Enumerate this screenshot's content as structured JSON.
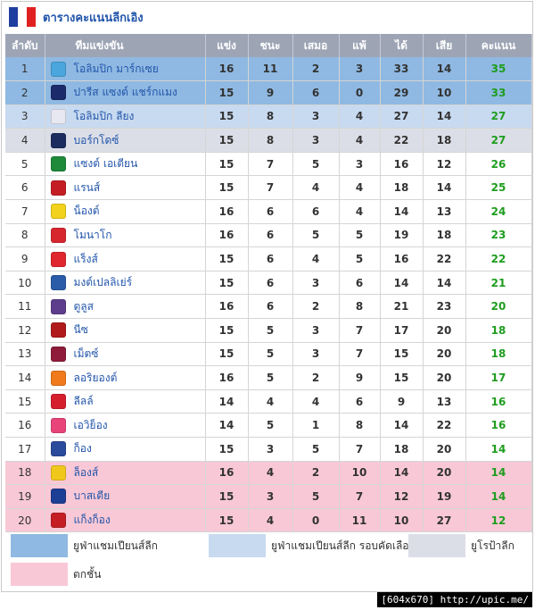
{
  "header": {
    "title": "ตารางคะแนนลีกเอิง",
    "flag_colors": [
      "#1f3fa0",
      "#ffffff",
      "#e02020"
    ]
  },
  "columns": {
    "pos": "ลำดับ",
    "team": "ทีมแข่งขัน",
    "played": "แข่ง",
    "won": "ชนะ",
    "drawn": "เสมอ",
    "lost": "แพ้",
    "gf": "ได้",
    "ga": "เสีย",
    "pts": "คะแนน"
  },
  "colors": {
    "champion": "#8fb9e2",
    "champion_qual": "#c8daf0",
    "europa": "#dcdee7",
    "relegation": "#f9c8d6",
    "normal": "#ffffff",
    "points_text": "#1e9d1e",
    "team_text": "#2255aa"
  },
  "rows": [
    {
      "pos": "1",
      "team": "โอลิมปิก มาร์กเซย",
      "crest": "om-crest-icon",
      "crest_color": "#4aa6dc",
      "played": "16",
      "won": "11",
      "drawn": "2",
      "lost": "3",
      "gf": "33",
      "ga": "14",
      "pts": "35",
      "zone": "champion"
    },
    {
      "pos": "2",
      "team": "ปารีส แซงต์ แชร์กแมง",
      "crest": "psg-crest-icon",
      "crest_color": "#1b2a6b",
      "played": "15",
      "won": "9",
      "drawn": "6",
      "lost": "0",
      "gf": "29",
      "ga": "10",
      "pts": "33",
      "zone": "champion"
    },
    {
      "pos": "3",
      "team": "โอลิมปิก ลียง",
      "crest": "lyon-crest-icon",
      "crest_color": "#e8e8f2",
      "played": "15",
      "won": "8",
      "drawn": "3",
      "lost": "4",
      "gf": "27",
      "ga": "14",
      "pts": "27",
      "zone": "champion_qual"
    },
    {
      "pos": "4",
      "team": "บอร์กโดซ์",
      "crest": "bordeaux-crest-icon",
      "crest_color": "#1c2c5e",
      "played": "15",
      "won": "8",
      "drawn": "3",
      "lost": "4",
      "gf": "22",
      "ga": "18",
      "pts": "27",
      "zone": "europa"
    },
    {
      "pos": "5",
      "team": "แซงต์ เอเตียน",
      "crest": "saint-etienne-crest-icon",
      "crest_color": "#1e8a3a",
      "played": "15",
      "won": "7",
      "drawn": "5",
      "lost": "3",
      "gf": "16",
      "ga": "12",
      "pts": "26",
      "zone": "normal"
    },
    {
      "pos": "6",
      "team": "แรนส์",
      "crest": "rennes-crest-icon",
      "crest_color": "#c41e24",
      "played": "15",
      "won": "7",
      "drawn": "4",
      "lost": "4",
      "gf": "18",
      "ga": "14",
      "pts": "25",
      "zone": "normal"
    },
    {
      "pos": "7",
      "team": "น็องต์",
      "crest": "nantes-crest-icon",
      "crest_color": "#f2d21c",
      "played": "16",
      "won": "6",
      "drawn": "6",
      "lost": "4",
      "gf": "14",
      "ga": "13",
      "pts": "24",
      "zone": "normal"
    },
    {
      "pos": "8",
      "team": "โมนาโก",
      "crest": "monaco-crest-icon",
      "crest_color": "#d8262e",
      "played": "16",
      "won": "6",
      "drawn": "5",
      "lost": "5",
      "gf": "19",
      "ga": "18",
      "pts": "23",
      "zone": "normal"
    },
    {
      "pos": "9",
      "team": "แร็งส์",
      "crest": "reims-crest-icon",
      "crest_color": "#e0262e",
      "played": "15",
      "won": "6",
      "drawn": "4",
      "lost": "5",
      "gf": "16",
      "ga": "22",
      "pts": "22",
      "zone": "normal"
    },
    {
      "pos": "10",
      "team": "มงต์เปลลิเย่ร์",
      "crest": "montpellier-crest-icon",
      "crest_color": "#2a5ca8",
      "played": "15",
      "won": "6",
      "drawn": "3",
      "lost": "6",
      "gf": "14",
      "ga": "14",
      "pts": "21",
      "zone": "normal"
    },
    {
      "pos": "11",
      "team": "ตูลูส",
      "crest": "toulouse-crest-icon",
      "crest_color": "#5d3e8c",
      "played": "16",
      "won": "6",
      "drawn": "2",
      "lost": "8",
      "gf": "21",
      "ga": "23",
      "pts": "20",
      "zone": "normal"
    },
    {
      "pos": "12",
      "team": "นีซ",
      "crest": "nice-crest-icon",
      "crest_color": "#b11a1a",
      "played": "15",
      "won": "5",
      "drawn": "3",
      "lost": "7",
      "gf": "17",
      "ga": "20",
      "pts": "18",
      "zone": "normal"
    },
    {
      "pos": "13",
      "team": "เม็ตซ์",
      "crest": "metz-crest-icon",
      "crest_color": "#8e1c3a",
      "played": "15",
      "won": "5",
      "drawn": "3",
      "lost": "7",
      "gf": "15",
      "ga": "20",
      "pts": "18",
      "zone": "normal"
    },
    {
      "pos": "14",
      "team": "ลอริยองต์",
      "crest": "lorient-crest-icon",
      "crest_color": "#f07a1c",
      "played": "16",
      "won": "5",
      "drawn": "2",
      "lost": "9",
      "gf": "15",
      "ga": "20",
      "pts": "17",
      "zone": "normal"
    },
    {
      "pos": "15",
      "team": "ลีลล์",
      "crest": "lille-crest-icon",
      "crest_color": "#d61f2c",
      "played": "14",
      "won": "4",
      "drawn": "4",
      "lost": "6",
      "gf": "9",
      "ga": "13",
      "pts": "16",
      "zone": "normal"
    },
    {
      "pos": "16",
      "team": "เอวิย็อง",
      "crest": "evian-crest-icon",
      "crest_color": "#e8447a",
      "played": "14",
      "won": "5",
      "drawn": "1",
      "lost": "8",
      "gf": "14",
      "ga": "22",
      "pts": "16",
      "zone": "normal"
    },
    {
      "pos": "17",
      "team": "ก็อง",
      "crest": "caen-crest-icon",
      "crest_color": "#2a4a9c",
      "played": "15",
      "won": "3",
      "drawn": "5",
      "lost": "7",
      "gf": "18",
      "ga": "20",
      "pts": "14",
      "zone": "normal"
    },
    {
      "pos": "18",
      "team": "ล็องส์",
      "crest": "lens-crest-icon",
      "crest_color": "#f0c81c",
      "played": "16",
      "won": "4",
      "drawn": "2",
      "lost": "10",
      "gf": "14",
      "ga": "20",
      "pts": "14",
      "zone": "relegation"
    },
    {
      "pos": "19",
      "team": "บาสเตีย",
      "crest": "bastia-crest-icon",
      "crest_color": "#1c3e94",
      "played": "15",
      "won": "3",
      "drawn": "5",
      "lost": "7",
      "gf": "12",
      "ga": "19",
      "pts": "14",
      "zone": "relegation"
    },
    {
      "pos": "20",
      "team": "แก็งก็อง",
      "crest": "guingamp-crest-icon",
      "crest_color": "#c41e24",
      "played": "15",
      "won": "4",
      "drawn": "0",
      "lost": "11",
      "gf": "10",
      "ga": "27",
      "pts": "12",
      "zone": "relegation"
    }
  ],
  "legend": [
    {
      "label": "ยูฟ่าแชมเปียนส์ลีก",
      "zone": "champion"
    },
    {
      "label": "ยูฟ่าแชมเปียนส์ลีก รอบคัดเลือก",
      "zone": "champion_qual"
    },
    {
      "label": "ยูโรป้าลีก",
      "zone": "europa"
    },
    {
      "label": "ตกชั้น",
      "zone": "relegation"
    }
  ],
  "footer": {
    "credit": "[604x670] http://upic.me/"
  }
}
